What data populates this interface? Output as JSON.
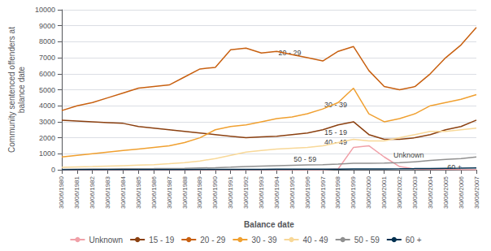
{
  "chart_data": {
    "type": "line",
    "xlabel": "Balance date",
    "ylabel": "Community sentenced offenders at\nbalance date",
    "x": [
      1980,
      1981,
      1982,
      1983,
      1984,
      1985,
      1986,
      1987,
      1988,
      1989,
      1990,
      1991,
      1992,
      1993,
      1994,
      1995,
      1996,
      1997,
      1998,
      1999,
      2000,
      2001,
      2002,
      2003,
      2004,
      2005,
      2006,
      2007
    ],
    "xlim": [
      1980,
      2007
    ],
    "xticks": [
      {
        "value": 1980,
        "label": "30/06/1980"
      },
      {
        "value": 1981,
        "label": "30/06/1981"
      },
      {
        "value": 1982,
        "label": "30/06/1982"
      },
      {
        "value": 1983,
        "label": "30/06/1983"
      },
      {
        "value": 1984,
        "label": "30/06/1984"
      },
      {
        "value": 1985,
        "label": "30/06/1985"
      },
      {
        "value": 1986,
        "label": "30/06/1986"
      },
      {
        "value": 1987,
        "label": "30/06/1987"
      },
      {
        "value": 1988,
        "label": "30/06/1988"
      },
      {
        "value": 1989,
        "label": "30/06/1989"
      },
      {
        "value": 1990,
        "label": "30/06/1990"
      },
      {
        "value": 1991,
        "label": "30/06/1991"
      },
      {
        "value": 1992,
        "label": "30/06/1992"
      },
      {
        "value": 1993,
        "label": "30/06/1993"
      },
      {
        "value": 1994,
        "label": "30/06/1994"
      },
      {
        "value": 1995,
        "label": "30/06/1995"
      },
      {
        "value": 1996,
        "label": "30/06/1996"
      },
      {
        "value": 1997,
        "label": "30/06/1997"
      },
      {
        "value": 1998,
        "label": "30/06/1998"
      },
      {
        "value": 1999,
        "label": "30/06/1999"
      },
      {
        "value": 2000,
        "label": "30/06/2000"
      },
      {
        "value": 2001,
        "label": "30/06/2001"
      },
      {
        "value": 2002,
        "label": "30/06/2002"
      },
      {
        "value": 2003,
        "label": "30/06/2003"
      },
      {
        "value": 2004,
        "label": "30/06/2004"
      },
      {
        "value": 2005,
        "label": "30/06/2005"
      },
      {
        "value": 2006,
        "label": "30/06/2006"
      },
      {
        "value": 2007,
        "label": "30/06/2007"
      }
    ],
    "ylim": [
      0,
      10000
    ],
    "yticks": [
      0,
      1000,
      2000,
      3000,
      4000,
      5000,
      6000,
      7000,
      8000,
      9000,
      10000
    ],
    "grid": true,
    "legend": "bottom",
    "series": [
      {
        "name": "Unknown",
        "color": "#f0a0a8",
        "values": [
          0,
          0,
          0,
          0,
          0,
          0,
          0,
          0,
          0,
          0,
          0,
          0,
          0,
          0,
          0,
          0,
          0,
          0,
          50,
          1400,
          1500,
          800,
          200,
          50,
          30,
          20,
          10,
          5
        ]
      },
      {
        "name": "15 - 19",
        "color": "#8B4010",
        "values": [
          3100,
          3050,
          3000,
          2950,
          2900,
          2700,
          2600,
          2500,
          2400,
          2300,
          2200,
          2100,
          2000,
          2050,
          2100,
          2200,
          2300,
          2500,
          2800,
          3000,
          2200,
          1900,
          1900,
          2000,
          2200,
          2500,
          2700,
          3100
        ]
      },
      {
        "name": "20 - 29",
        "color": "#C86010",
        "values": [
          3700,
          4000,
          4200,
          4500,
          4800,
          5100,
          5200,
          5300,
          5800,
          6300,
          6400,
          7500,
          7600,
          7300,
          7400,
          7200,
          7000,
          6800,
          7400,
          7700,
          6200,
          5200,
          5000,
          5200,
          6000,
          7000,
          7800,
          8900
        ]
      },
      {
        "name": "30 - 39",
        "color": "#F0A030",
        "values": [
          800,
          900,
          1000,
          1100,
          1200,
          1300,
          1400,
          1500,
          1700,
          2000,
          2500,
          2700,
          2800,
          3000,
          3200,
          3300,
          3500,
          3800,
          4200,
          5100,
          3500,
          3000,
          3200,
          3500,
          4000,
          4200,
          4400,
          4700
        ]
      },
      {
        "name": "40 - 49",
        "color": "#F8D898",
        "values": [
          150,
          180,
          200,
          230,
          260,
          290,
          320,
          380,
          450,
          550,
          700,
          900,
          1100,
          1200,
          1300,
          1350,
          1400,
          1500,
          1700,
          1900,
          1800,
          1800,
          2000,
          2200,
          2400,
          2400,
          2500,
          2600
        ]
      },
      {
        "name": "50 - 59",
        "color": "#909090",
        "values": [
          30,
          40,
          50,
          55,
          60,
          65,
          70,
          80,
          90,
          110,
          130,
          160,
          200,
          230,
          260,
          280,
          300,
          320,
          350,
          400,
          400,
          420,
          450,
          500,
          580,
          650,
          700,
          800
        ]
      },
      {
        "name": "60 +",
        "color": "#003050",
        "values": [
          5,
          8,
          10,
          12,
          13,
          15,
          16,
          17,
          18,
          20,
          22,
          25,
          28,
          30,
          33,
          35,
          38,
          40,
          43,
          46,
          50,
          55,
          60,
          70,
          80,
          90,
          100,
          120
        ]
      }
    ],
    "annotations": [
      {
        "text": "20 - 29",
        "x": 1994,
        "y": 7300
      },
      {
        "text": "30 - 39",
        "x": 1997,
        "y": 4050
      },
      {
        "text": "15 - 19",
        "x": 1997,
        "y": 2350
      },
      {
        "text": "40 - 49",
        "x": 1997,
        "y": 1720
      },
      {
        "text": "50 - 59",
        "x": 1995,
        "y": 640
      },
      {
        "text": "Unknown",
        "x": 2001.5,
        "y": 920
      },
      {
        "text": "60 +",
        "x": 2005.0,
        "y": 145
      }
    ]
  }
}
